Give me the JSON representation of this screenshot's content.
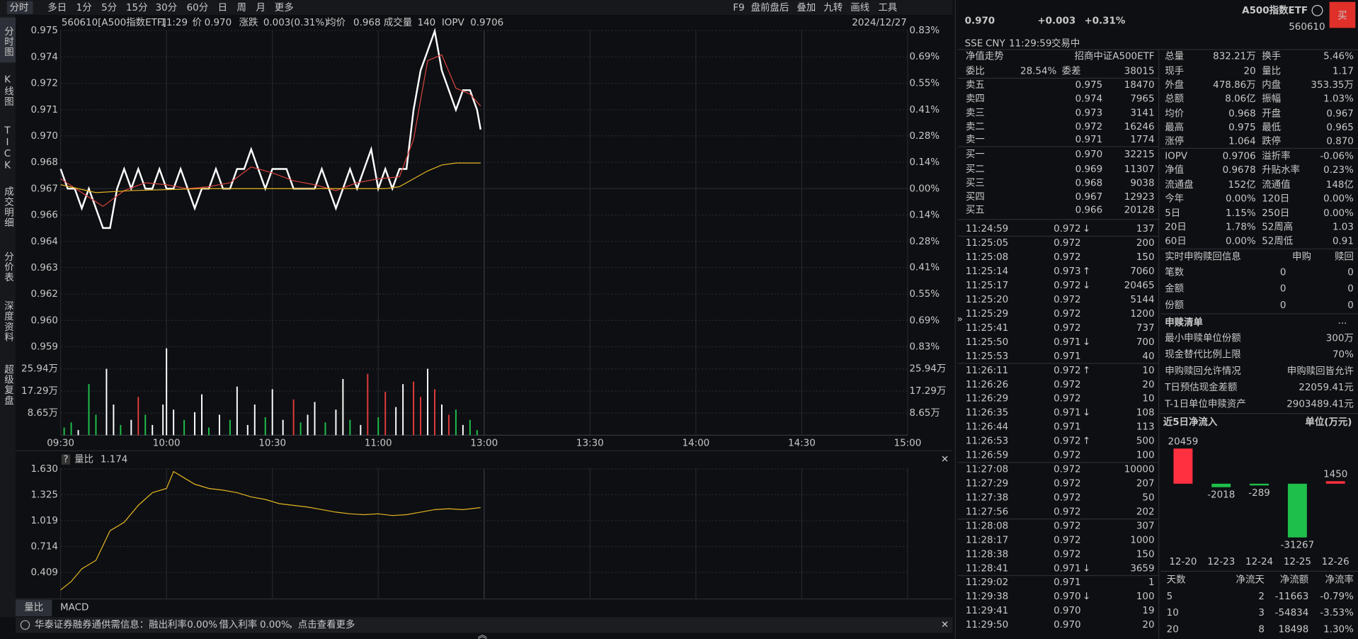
{
  "toolbar": {
    "left": [
      "分时",
      "多日",
      "1分",
      "5分",
      "15分",
      "30分",
      "60分",
      "日",
      "周",
      "月",
      "更多"
    ],
    "right": [
      "F9",
      "盘前盘后",
      "叠加",
      "九转",
      "画线",
      "工具"
    ]
  },
  "sidebar": [
    "分时图",
    "K线图",
    "TICK",
    "成交明细",
    "分价表",
    "深度资料",
    "超级复盘"
  ],
  "info": {
    "code": "560610[A500指数ETF]",
    "time": "11:29",
    "price_label": "价",
    "price": "0.970",
    "change_label": "涨跌",
    "change": "0.003(0.31%)",
    "avg_label": "均价",
    "avg": "0.968",
    "vol_label": "成交量",
    "vol": "140",
    "iopv_label": "IOPV",
    "iopv": "0.9706",
    "date": "2024/12/27"
  },
  "price_chart": {
    "type": "line",
    "xlim": [
      0,
      240
    ],
    "xticks": [
      {
        "value": 0,
        "label": "09:30"
      },
      {
        "value": 30,
        "label": "10:00"
      },
      {
        "value": 60,
        "label": "10:30"
      },
      {
        "value": 90,
        "label": "11:00"
      },
      {
        "value": 120,
        "label": "13:00"
      },
      {
        "value": 150,
        "label": "13:30"
      },
      {
        "value": 180,
        "label": "14:00"
      },
      {
        "value": 210,
        "label": "14:30"
      },
      {
        "value": 240,
        "label": "15:00"
      }
    ],
    "ylim": [
      0.95897,
      0.97503
    ],
    "yticks": [
      {
        "value": 0.95897,
        "label": "0.959"
      },
      {
        "value": 0.96031,
        "label": "0.960"
      },
      {
        "value": 0.96165,
        "label": "0.962"
      },
      {
        "value": 0.96299,
        "label": "0.963"
      },
      {
        "value": 0.96432,
        "label": "0.964"
      },
      {
        "value": 0.96566,
        "label": "0.966"
      },
      0.967,
      {
        "value": 0.96834,
        "label": "0.968"
      },
      {
        "value": 0.96968,
        "label": "0.970"
      },
      {
        "value": 0.97101,
        "label": "0.971"
      },
      {
        "value": 0.97235,
        "label": "0.972"
      },
      {
        "value": 0.97369,
        "label": "0.974"
      },
      {
        "value": 0.97503,
        "label": "0.975"
      }
    ],
    "y2lim": [
      -0.83,
      0.83
    ],
    "y2ticks": [
      {
        "value": -0.83,
        "label": "0.83%"
      },
      {
        "value": -0.692,
        "label": "0.69%"
      },
      {
        "value": -0.553,
        "label": "0.55%"
      },
      {
        "value": -0.414,
        "label": "0.41%"
      },
      {
        "value": -0.277,
        "label": "0.28%"
      },
      {
        "value": -0.138,
        "label": "0.14%"
      },
      {
        "value": 0,
        "label": "0.00%"
      },
      {
        "value": 0.138,
        "label": "0.14%"
      },
      {
        "value": 0.277,
        "label": "0.28%"
      },
      {
        "value": 0.414,
        "label": "0.41%"
      },
      {
        "value": 0.553,
        "label": "0.55%"
      },
      {
        "value": 0.692,
        "label": "0.69%"
      },
      {
        "value": 0.83,
        "label": "0.83%"
      }
    ],
    "series": [
      {
        "color": "#ffffff",
        "x": [
          0,
          2,
          4,
          6,
          8,
          10,
          12,
          14,
          16,
          18,
          20,
          22,
          24,
          26,
          28,
          30,
          32,
          34,
          36,
          38,
          40,
          42,
          44,
          46,
          48,
          50,
          52,
          54,
          56,
          58,
          60,
          62,
          64,
          66,
          68,
          70,
          72,
          74,
          76,
          78,
          80,
          82,
          84,
          86,
          88,
          90,
          92,
          94,
          96,
          98,
          100,
          102,
          104,
          106,
          108,
          110,
          112,
          114,
          116,
          118,
          119
        ],
        "values": [
          0.968,
          0.967,
          0.967,
          0.966,
          0.967,
          0.966,
          0.965,
          0.965,
          0.967,
          0.968,
          0.967,
          0.968,
          0.967,
          0.967,
          0.968,
          0.967,
          0.967,
          0.968,
          0.967,
          0.966,
          0.967,
          0.967,
          0.968,
          0.967,
          0.967,
          0.968,
          0.968,
          0.969,
          0.968,
          0.967,
          0.968,
          0.968,
          0.968,
          0.967,
          0.967,
          0.967,
          0.967,
          0.968,
          0.967,
          0.966,
          0.967,
          0.968,
          0.967,
          0.968,
          0.969,
          0.967,
          0.968,
          0.967,
          0.968,
          0.968,
          0.971,
          0.973,
          0.974,
          0.975,
          0.973,
          0.972,
          0.971,
          0.972,
          0.972,
          0.971,
          0.97
        ]
      },
      {
        "color": "#d9433f",
        "x": [
          0,
          6,
          12,
          18,
          24,
          30,
          36,
          42,
          48,
          54,
          60,
          66,
          72,
          78,
          84,
          90,
          96,
          100,
          104,
          108,
          112,
          116,
          119
        ],
        "values": [
          0.9675,
          0.9668,
          0.9661,
          0.9669,
          0.9673,
          0.9672,
          0.967,
          0.9671,
          0.9673,
          0.9681,
          0.9678,
          0.9674,
          0.9672,
          0.9669,
          0.9673,
          0.9675,
          0.9676,
          0.9695,
          0.9735,
          0.9738,
          0.9721,
          0.9718,
          0.9712
        ]
      },
      {
        "color": "#e6b422",
        "x": [
          0,
          10,
          20,
          40,
          60,
          80,
          92,
          96,
          100,
          104,
          108,
          112,
          119
        ],
        "values": [
          0.9672,
          0.9668,
          0.9669,
          0.967,
          0.967,
          0.967,
          0.967,
          0.9671,
          0.9675,
          0.9679,
          0.9682,
          0.9683,
          0.9683
        ]
      }
    ]
  },
  "volume_chart": {
    "type": "bar",
    "ylim": [
      0,
      34.6
    ],
    "yticks": [
      {
        "value": 8.65,
        "label": "8.65万"
      },
      {
        "value": 17.29,
        "label": "17.29万"
      },
      {
        "value": 25.94,
        "label": "25.94万"
      }
    ],
    "x": [
      1,
      3,
      5,
      8,
      10,
      13,
      15,
      17,
      20,
      22,
      24,
      26,
      29,
      30,
      32,
      35,
      38,
      40,
      42,
      45,
      48,
      50,
      53,
      55,
      58,
      60,
      63,
      66,
      68,
      70,
      72,
      75,
      78,
      80,
      82,
      85,
      87,
      90,
      92,
      95,
      97,
      100,
      102,
      104,
      106,
      108,
      110,
      112,
      114,
      116,
      118
    ],
    "values": [
      3,
      5,
      2,
      20,
      8,
      26,
      12,
      4,
      6,
      15,
      8,
      4,
      12,
      34,
      10,
      6,
      9,
      16,
      3,
      8,
      6,
      19,
      4,
      12,
      7,
      18,
      6,
      14,
      5,
      8,
      13,
      5,
      10,
      22,
      6,
      4,
      24,
      7,
      17,
      11,
      20,
      21,
      15,
      26,
      18,
      12,
      8,
      10,
      4,
      6,
      2
    ],
    "colors": [
      "#1fbf4b",
      "#1fbf4b",
      "#ffffff",
      "#1fbf4b",
      "#1fbf4b",
      "#ffffff",
      "#ffffff",
      "#1fbf4b",
      "#ffffff",
      "#e23b3b",
      "#1fbf4b",
      "#ffffff",
      "#ffffff",
      "#ffffff",
      "#ffffff",
      "#1fbf4b",
      "#ffffff",
      "#ffffff",
      "#1fbf4b",
      "#ffffff",
      "#1fbf4b",
      "#ffffff",
      "#ffffff",
      "#ffffff",
      "#1fbf4b",
      "#ffffff",
      "#ffffff",
      "#e23b3b",
      "#1fbf4b",
      "#ffffff",
      "#ffffff",
      "#1fbf4b",
      "#ffffff",
      "#ffffff",
      "#1fbf4b",
      "#ffffff",
      "#e23b3b",
      "#1fbf4b",
      "#e23b3b",
      "#ffffff",
      "#ffffff",
      "#e23b3b",
      "#e23b3b",
      "#ffffff",
      "#e23b3b",
      "#ffffff",
      "#e23b3b",
      "#1fbf4b",
      "#ffffff",
      "#1fbf4b",
      "#1fbf4b"
    ]
  },
  "ratio_chart": {
    "type": "line",
    "title": "量比",
    "value": "1.174",
    "ylim": [
      0.104,
      1.63
    ],
    "yticks": [
      {
        "value": 0.409,
        "label": "0.409"
      },
      0.714,
      1.019,
      1.325,
      {
        "value": 1.63,
        "label": "1.630"
      }
    ],
    "series": [
      {
        "color": "#e6b422",
        "x": [
          0,
          3,
          6,
          10,
          14,
          18,
          22,
          26,
          30,
          32,
          34,
          38,
          42,
          46,
          50,
          54,
          58,
          62,
          66,
          70,
          74,
          78,
          82,
          86,
          90,
          94,
          98,
          102,
          106,
          110,
          114,
          119
        ],
        "values": [
          0.2,
          0.3,
          0.45,
          0.55,
          0.9,
          1.0,
          1.2,
          1.35,
          1.4,
          1.6,
          1.55,
          1.45,
          1.4,
          1.38,
          1.35,
          1.3,
          1.27,
          1.22,
          1.2,
          1.18,
          1.15,
          1.12,
          1.1,
          1.09,
          1.1,
          1.08,
          1.09,
          1.12,
          1.15,
          1.16,
          1.15,
          1.174
        ]
      }
    ]
  },
  "bottom_tabs": [
    "量比",
    "MACD"
  ],
  "notice": {
    "prefix": "华泰证券融券通供需信息：融出利率",
    "rate1": "0.00%",
    "mid": "借入利率",
    "rate2": "0.00%",
    "suffix": "，点击查看更多"
  },
  "quote": {
    "price": "0.970",
    "change": "+0.003",
    "pct": "+0.31%",
    "name": "A500指数ETF",
    "code": "560610",
    "buy": "买",
    "exchange": "SSE",
    "currency": "CNY",
    "time": "11:29:59",
    "status": "交易中"
  },
  "nav": {
    "label": "净值走势",
    "fund": "招商中证A500ETF"
  },
  "ratio": {
    "l1": "委比",
    "v1": "28.54%",
    "l2": "委差",
    "v2": "38015"
  },
  "book": [
    {
      "label": "卖五",
      "price": "0.975",
      "vol": "18470",
      "color": "#ff3b3b"
    },
    {
      "label": "卖四",
      "price": "0.974",
      "vol": "7965",
      "color": "#ff3b3b"
    },
    {
      "label": "卖三",
      "price": "0.973",
      "vol": "3141",
      "color": "#ff3b3b"
    },
    {
      "label": "卖二",
      "price": "0.972",
      "vol": "16246",
      "color": "#ff3b3b"
    },
    {
      "label": "卖一",
      "price": "0.971",
      "vol": "1774",
      "color": "#ff3b3b"
    },
    {
      "label": "买一",
      "price": "0.970",
      "vol": "32215",
      "color": "#ff3b3b"
    },
    {
      "label": "买二",
      "price": "0.969",
      "vol": "11307",
      "color": "#ff3b3b"
    },
    {
      "label": "买三",
      "price": "0.968",
      "vol": "9038",
      "color": "#ff3b3b"
    },
    {
      "label": "买四",
      "price": "0.967",
      "vol": "12923",
      "color": "#e0e0e0"
    },
    {
      "label": "买五",
      "price": "0.966",
      "vol": "20128",
      "color": "#1fbf4b"
    }
  ],
  "trades": [
    {
      "time": "11:24:59",
      "price": "0.972",
      "arrow": "↓",
      "vol": "137",
      "color": "#1fbf4b"
    },
    {
      "time": "11:25:05",
      "price": "0.972",
      "vol": "200",
      "color": "#1fbf4b"
    },
    {
      "time": "11:25:08",
      "price": "0.972",
      "vol": "150",
      "color": "#1fbf4b"
    },
    {
      "time": "11:25:14",
      "price": "0.973",
      "arrow": "↑",
      "vol": "7060",
      "color": "#ff3b3b"
    },
    {
      "time": "11:25:17",
      "price": "0.972",
      "arrow": "↓",
      "vol": "20465",
      "color": "#1fbf4b"
    },
    {
      "time": "11:25:20",
      "price": "0.972",
      "vol": "5144",
      "color": "#ff3b3b"
    },
    {
      "time": "11:25:29",
      "price": "0.972",
      "vol": "1200",
      "color": "#ff3b3b"
    },
    {
      "time": "11:25:41",
      "price": "0.972",
      "vol": "737",
      "color": "#ff3b3b"
    },
    {
      "time": "11:25:50",
      "price": "0.971",
      "arrow": "↓",
      "vol": "700",
      "color": "#1fbf4b"
    },
    {
      "time": "11:25:53",
      "price": "0.971",
      "vol": "40",
      "color": "#1fbf4b"
    },
    {
      "time": "11:26:11",
      "price": "0.972",
      "arrow": "↑",
      "vol": "10",
      "color": "#ff3b3b"
    },
    {
      "time": "11:26:26",
      "price": "0.972",
      "vol": "20",
      "color": "#ff3b3b"
    },
    {
      "time": "11:26:29",
      "price": "0.972",
      "vol": "10",
      "color": "#ff3b3b"
    },
    {
      "time": "11:26:35",
      "price": "0.971",
      "arrow": "↓",
      "vol": "108",
      "color": "#1fbf4b"
    },
    {
      "time": "11:26:44",
      "price": "0.971",
      "vol": "113",
      "color": "#1fbf4b"
    },
    {
      "time": "11:26:53",
      "price": "0.972",
      "arrow": "↑",
      "vol": "500",
      "color": "#ff3b3b"
    },
    {
      "time": "11:26:59",
      "price": "0.972",
      "vol": "100",
      "color": "#ff3b3b"
    },
    {
      "time": "11:27:08",
      "price": "0.972",
      "vol": "10000",
      "color": "#ff3b3b"
    },
    {
      "time": "11:27:29",
      "price": "0.972",
      "vol": "207",
      "color": "#ff3b3b"
    },
    {
      "time": "11:27:38",
      "price": "0.972",
      "vol": "50",
      "color": "#ff3b3b"
    },
    {
      "time": "11:27:56",
      "price": "0.972",
      "vol": "202",
      "color": "#ff3b3b"
    },
    {
      "time": "11:28:08",
      "price": "0.972",
      "vol": "307",
      "color": "#ff3b3b"
    },
    {
      "time": "11:28:17",
      "price": "0.972",
      "vol": "1000",
      "color": "#ff3b3b"
    },
    {
      "time": "11:28:38",
      "price": "0.972",
      "vol": "150",
      "color": "#ff3b3b"
    },
    {
      "time": "11:28:41",
      "price": "0.971",
      "arrow": "↓",
      "vol": "3659",
      "color": "#1fbf4b"
    },
    {
      "time": "11:29:02",
      "price": "0.971",
      "vol": "1",
      "color": "#ff3b3b"
    },
    {
      "time": "11:29:38",
      "price": "0.970",
      "arrow": "↓",
      "vol": "100",
      "color": "#1fbf4b"
    },
    {
      "time": "11:29:41",
      "price": "0.970",
      "vol": "19",
      "color": "#1fbf4b"
    },
    {
      "time": "11:29:50",
      "price": "0.970",
      "vol": "20",
      "color": "#1fbf4b"
    }
  ],
  "stats": [
    {
      "label": "总量",
      "value": "832.21万"
    },
    {
      "label": "换手",
      "value": "5.46%"
    },
    {
      "label": "现手",
      "value": "20"
    },
    {
      "label": "量比",
      "value": "1.17"
    },
    {
      "label": "外盘",
      "value": "478.86万",
      "color": "#ff3b3b"
    },
    {
      "label": "内盘",
      "value": "353.35万",
      "color": "#1fbf4b"
    },
    {
      "label": "总额",
      "value": "8.06亿"
    },
    {
      "label": "振幅",
      "value": "1.03%"
    },
    {
      "label": "均价",
      "value": "0.968",
      "color": "#ff3b3b"
    },
    {
      "label": "开盘",
      "value": "0.967"
    },
    {
      "label": "最高",
      "value": "0.975",
      "color": "#ff3b3b"
    },
    {
      "label": "最低",
      "value": "0.965",
      "color": "#1fbf4b"
    },
    {
      "label": "涨停",
      "value": "1.064",
      "color": "#ff3b3b"
    },
    {
      "label": "跌停",
      "value": "0.870",
      "color": "#1fbf4b"
    },
    {
      "label": "IOPV",
      "value": "0.9706"
    },
    {
      "label": "溢折率",
      "value": "-0.06%",
      "color": "#1fbf4b"
    },
    {
      "label": "净值",
      "value": "0.9678",
      "color": "#ff3b3b"
    },
    {
      "label": "升贴水率",
      "value": "0.23%",
      "color": "#ff3b3b"
    },
    {
      "label": "流通盘",
      "value": "152亿"
    },
    {
      "label": "流通值",
      "value": "148亿"
    },
    {
      "label": "今年",
      "value": "0.00%"
    },
    {
      "label": "120日",
      "value": "0.00%"
    },
    {
      "label": "5日",
      "value": "1.15%",
      "color": "#ff3b3b"
    },
    {
      "label": "250日",
      "value": "0.00%"
    },
    {
      "label": "20日",
      "value": "1.78%",
      "color": "#ff3b3b"
    },
    {
      "label": "52周高",
      "value": "1.03"
    },
    {
      "label": "60日",
      "value": "0.00%"
    },
    {
      "label": "52周低",
      "value": "0.91"
    }
  ],
  "creation": {
    "title": "实时申购赎回信息",
    "col1": "申购",
    "col2": "赎回",
    "rows": [
      [
        "笔数",
        "0",
        "0"
      ],
      [
        "金额",
        "0",
        "0"
      ],
      [
        "份额",
        "0",
        "0"
      ]
    ]
  },
  "basket": {
    "title": "申赎清单",
    "more": "...",
    "rows": [
      [
        "最小申赎单位份额",
        "300万"
      ],
      [
        "现金替代比例上限",
        "70%"
      ],
      [
        "申购赎回允许情况",
        "申购赎回皆允许"
      ],
      [
        "T日预估现金差额",
        "22059.41元"
      ],
      [
        "T-1日单位申赎资产",
        "2903489.41元"
      ]
    ]
  },
  "inflow_chart": {
    "type": "bar",
    "title": "近5日净流入",
    "unit": "单位(万元)",
    "categories": [
      "12-20",
      "12-23",
      "12-24",
      "12-25",
      "12-26"
    ],
    "values": [
      20459,
      -2018,
      -289,
      -31267,
      1450
    ],
    "colors": [
      "#ff3040",
      "#1fbf4b",
      "#1fbf4b",
      "#1fbf4b",
      "#ff3040"
    ]
  },
  "flow_table": {
    "header": [
      "天数",
      "净流天",
      "净流额",
      "净流率"
    ],
    "rows": [
      [
        "5",
        "2",
        "-11663",
        "-0.79%"
      ],
      [
        "10",
        "3",
        "-54834",
        "-3.53%"
      ],
      [
        "20",
        "8",
        "18498",
        "1.30%"
      ]
    ],
    "colors": [
      "#ff3b3b",
      "#ff3b3b",
      "#1fbf4b",
      "#ff3b3b"
    ]
  }
}
